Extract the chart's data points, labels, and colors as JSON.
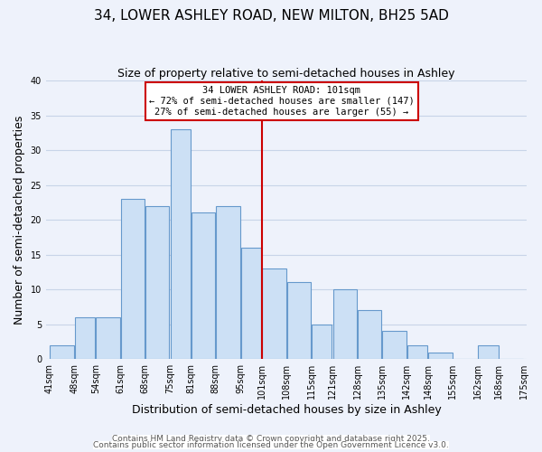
{
  "title": "34, LOWER ASHLEY ROAD, NEW MILTON, BH25 5AD",
  "subtitle": "Size of property relative to semi-detached houses in Ashley",
  "xlabel": "Distribution of semi-detached houses by size in Ashley",
  "ylabel": "Number of semi-detached properties",
  "bin_edges": [
    41,
    48,
    54,
    61,
    68,
    75,
    81,
    88,
    95,
    101,
    108,
    115,
    121,
    128,
    135,
    142,
    148,
    155,
    162,
    168,
    175
  ],
  "counts": [
    2,
    6,
    6,
    23,
    22,
    33,
    21,
    22,
    16,
    13,
    11,
    5,
    10,
    7,
    4,
    2,
    1,
    0,
    2,
    0
  ],
  "bar_color": "#cce0f5",
  "bar_edgecolor": "#6699cc",
  "vline_x": 101,
  "vline_color": "#cc0000",
  "ylim": [
    0,
    40
  ],
  "yticks": [
    0,
    5,
    10,
    15,
    20,
    25,
    30,
    35,
    40
  ],
  "annotation_title": "34 LOWER ASHLEY ROAD: 101sqm",
  "annotation_line2": "← 72% of semi-detached houses are smaller (147)",
  "annotation_line3": "27% of semi-detached houses are larger (55) →",
  "footer1": "Contains HM Land Registry data © Crown copyright and database right 2025.",
  "footer2": "Contains public sector information licensed under the Open Government Licence v3.0.",
  "background_color": "#eef2fb",
  "grid_color": "#c8d4e8",
  "title_fontsize": 11,
  "subtitle_fontsize": 9,
  "axis_label_fontsize": 9,
  "tick_label_fontsize": 7,
  "annotation_fontsize": 7.5,
  "footer_fontsize": 6.5
}
